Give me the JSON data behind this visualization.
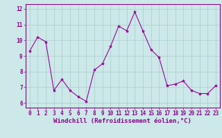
{
  "x": [
    0,
    1,
    2,
    3,
    4,
    5,
    6,
    7,
    8,
    9,
    10,
    11,
    12,
    13,
    14,
    15,
    16,
    17,
    18,
    19,
    20,
    21,
    22,
    23
  ],
  "y": [
    9.3,
    10.2,
    9.9,
    6.8,
    7.5,
    6.8,
    6.4,
    6.1,
    8.1,
    8.5,
    9.6,
    10.9,
    10.6,
    11.8,
    10.6,
    9.4,
    8.9,
    7.1,
    7.2,
    7.4,
    6.8,
    6.6,
    6.6,
    7.1
  ],
  "line_color": "#990099",
  "marker": "*",
  "marker_size": 3,
  "bg_color": "#cce8e8",
  "grid_color": "#aacccc",
  "xlabel": "Windchill (Refroidissement éolien,°C)",
  "xlabel_color": "#880088",
  "xlabel_fontsize": 6.5,
  "tick_color": "#880088",
  "tick_fontsize": 5.5,
  "ylim": [
    5.7,
    12.3
  ],
  "yticks": [
    6,
    7,
    8,
    9,
    10,
    11,
    12
  ],
  "xticks": [
    0,
    1,
    2,
    3,
    4,
    5,
    6,
    7,
    8,
    9,
    10,
    11,
    12,
    13,
    14,
    15,
    16,
    17,
    18,
    19,
    20,
    21,
    22,
    23
  ]
}
